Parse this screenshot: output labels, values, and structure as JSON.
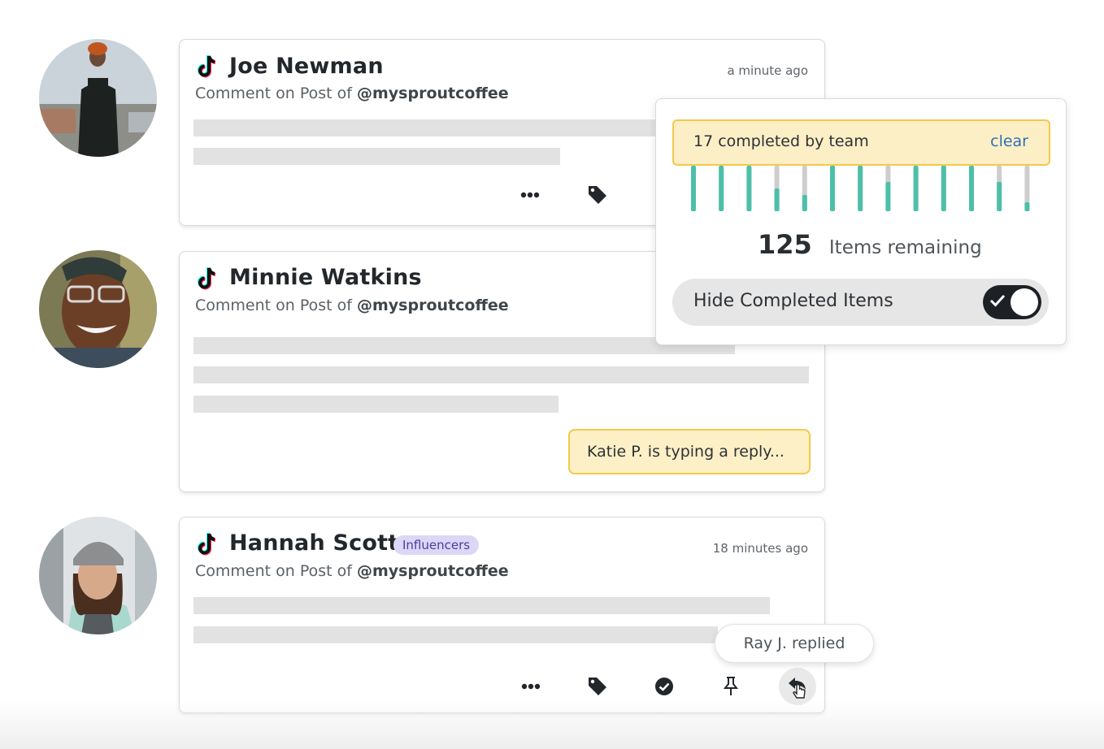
{
  "colors": {
    "teal": "#4dbfa8",
    "gray_bar": "#cdcdcd",
    "highlight_yellow": "#fcefc6",
    "highlight_border": "#f2c94c",
    "link_blue": "#2f6fb5",
    "badge_purple": "#dcd6f7"
  },
  "cards": [
    {
      "name": "Joe Newman",
      "subtitle_prefix": "Comment on Post of",
      "handle": "@mysproutcoffee",
      "time": "a minute ago"
    },
    {
      "name": "Minnie Watkins",
      "subtitle_prefix": "Comment on Post of",
      "handle": "@mysproutcoffee",
      "typing_indicator": "Katie P. is typing a reply..."
    },
    {
      "name": "Hannah Scott",
      "badge": "Influencers",
      "subtitle_prefix": "Comment on Post of",
      "handle": "@mysproutcoffee",
      "time": "18 minutes ago",
      "reply_notice": "Ray J. replied"
    }
  ],
  "actions": {
    "more_icon": "more-icon",
    "tag_icon": "tag-icon",
    "complete_icon": "check-circle-icon",
    "pin_icon": "pin-icon",
    "reply_icon": "reply-icon"
  },
  "progress_panel": {
    "filter_text": "17 completed by team",
    "clear_label": "clear",
    "completion_levels": [
      1,
      1,
      1,
      0.5,
      0.35,
      1,
      1,
      0.65,
      1,
      1,
      1,
      0.65,
      0.2
    ],
    "remaining_count": "125",
    "remaining_label": "Items remaining",
    "toggle_label": "Hide Completed Items",
    "toggle_on": true
  }
}
